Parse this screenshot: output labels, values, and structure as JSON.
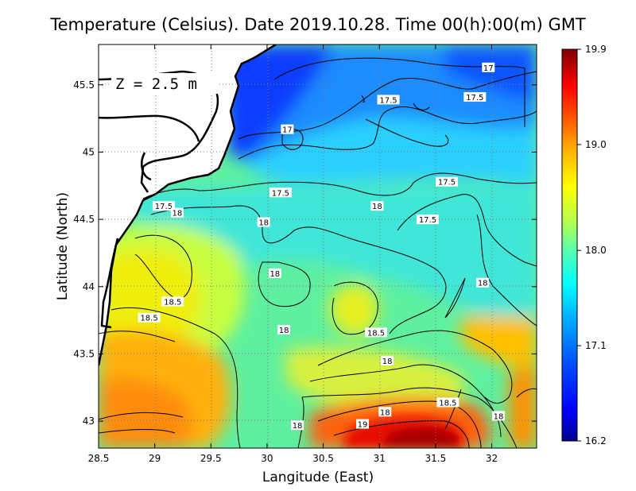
{
  "chart_data": {
    "type": "heatmap",
    "title": "Temperature (Celsius). Date 2019.10.28. Time 00(h):00(m)  GMT",
    "depth_label": "Z = 2.5 m",
    "xlabel": "Langitude (East)",
    "ylabel": "Latitude (North)",
    "xlim": [
      28.5,
      32.4
    ],
    "ylim": [
      42.8,
      45.8
    ],
    "x_ticks": [
      "28.5",
      "29",
      "29.5",
      "30",
      "30.5",
      "31",
      "31.5",
      "32"
    ],
    "x_tick_values": [
      28.5,
      29,
      29.5,
      30,
      30.5,
      31,
      31.5,
      32
    ],
    "y_ticks": [
      "43",
      "43.5",
      "44",
      "44.5",
      "45",
      "45.5"
    ],
    "y_tick_values": [
      43,
      43.5,
      44,
      44.5,
      45,
      45.5
    ],
    "grid": true,
    "colorbar": {
      "min": 16.2,
      "max": 19.9,
      "ticks": [
        "19.9",
        "19.0",
        "18.0",
        "17.1",
        "16.2"
      ],
      "tick_values": [
        19.9,
        19.0,
        18.0,
        17.1,
        16.2
      ],
      "colors": [
        "#00008c",
        "#0000ff",
        "#0050ff",
        "#00b4ff",
        "#00ffff",
        "#50ffb4",
        "#b4ff50",
        "#ffff00",
        "#ffb400",
        "#ff5000",
        "#ff0000",
        "#b40000",
        "#800000"
      ]
    },
    "contour_levels": [
      17,
      17.5,
      18,
      18.5,
      19
    ],
    "contour_labels": [
      {
        "text": "17",
        "lon": 31.97,
        "lat": 45.63
      },
      {
        "text": "17.5",
        "lon": 31.08,
        "lat": 45.39
      },
      {
        "text": "17.5",
        "lon": 31.85,
        "lat": 45.41
      },
      {
        "text": "17",
        "lon": 30.18,
        "lat": 45.17
      },
      {
        "text": "17.5",
        "lon": 31.6,
        "lat": 44.78
      },
      {
        "text": "17.5",
        "lon": 30.12,
        "lat": 44.7
      },
      {
        "text": "17.5",
        "lon": 29.08,
        "lat": 44.6
      },
      {
        "text": "18",
        "lon": 29.2,
        "lat": 44.55
      },
      {
        "text": "18",
        "lon": 30.98,
        "lat": 44.6
      },
      {
        "text": "18",
        "lon": 29.97,
        "lat": 44.48
      },
      {
        "text": "17.5",
        "lon": 31.43,
        "lat": 44.5
      },
      {
        "text": "18",
        "lon": 30.07,
        "lat": 44.1
      },
      {
        "text": "18",
        "lon": 31.92,
        "lat": 44.03
      },
      {
        "text": "18.5",
        "lon": 29.16,
        "lat": 43.89
      },
      {
        "text": "18.5",
        "lon": 28.95,
        "lat": 43.77
      },
      {
        "text": "18",
        "lon": 30.15,
        "lat": 43.68
      },
      {
        "text": "18.5",
        "lon": 30.97,
        "lat": 43.66
      },
      {
        "text": "18",
        "lon": 31.07,
        "lat": 43.45
      },
      {
        "text": "18.5",
        "lon": 31.61,
        "lat": 43.14
      },
      {
        "text": "18",
        "lon": 31.05,
        "lat": 43.07
      },
      {
        "text": "18",
        "lon": 32.06,
        "lat": 43.04
      },
      {
        "text": "18",
        "lon": 30.27,
        "lat": 42.97
      },
      {
        "text": "19",
        "lon": 30.85,
        "lat": 42.98
      }
    ]
  }
}
